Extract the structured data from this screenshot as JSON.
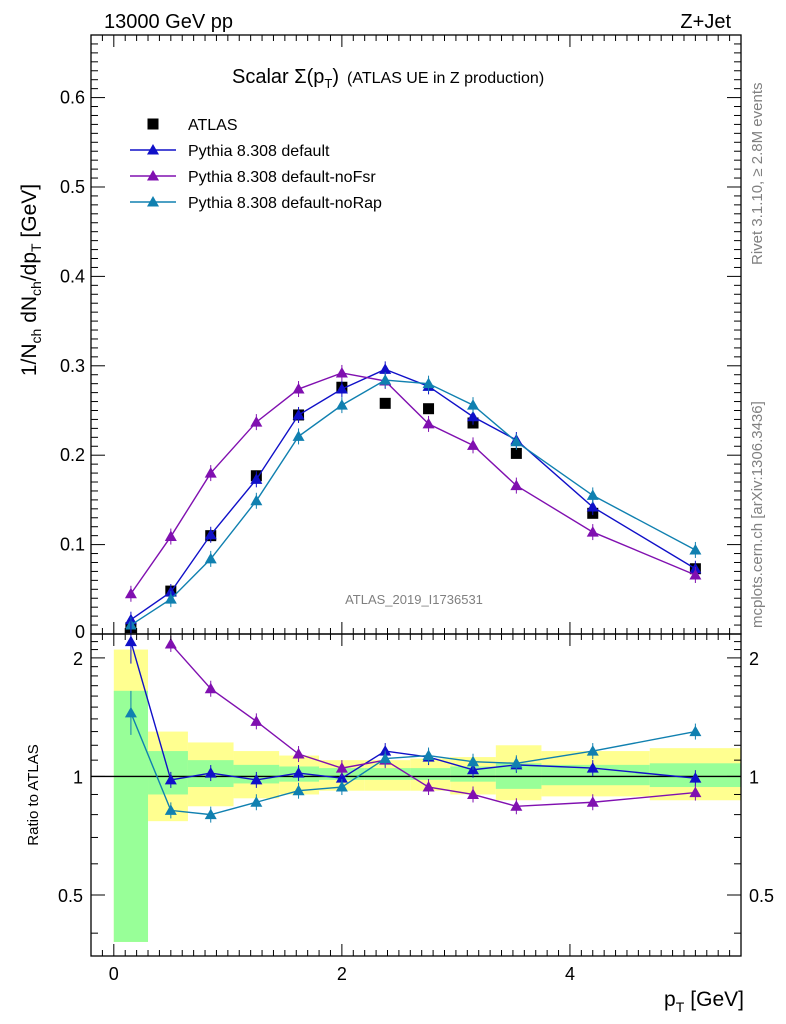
{
  "header": {
    "energy": "13000 GeV pp",
    "process": "Z+Jet"
  },
  "side_text": {
    "rivet": "Rivet 3.1.10, ≥ 2.8M events",
    "mcplots": "mcplots.cern.ch [arXiv:1306.3436]"
  },
  "colors": {
    "atlas": "#000000",
    "default": "#1010c8",
    "noFsr": "#8010b0",
    "noRap": "#1080b0",
    "band_stat": "#98ff98",
    "band_total": "#ffff90"
  },
  "chart_data": [
    {
      "type": "scatter",
      "title": "Scalar Σ(p_T) (ATLAS UE in Z production)",
      "title_main": "Scalar ",
      "title_sigma": "Σ(p",
      "title_sub": "T",
      "title_close": ")",
      "title_suffix": "(ATLAS UE in Z production)",
      "ylabel": "1/N_ch dN_ch/dp_T [GeV]",
      "analysis_label": "ATLAS_2019_I1736531",
      "xlim": [
        -0.2,
        5.5
      ],
      "ylim": [
        0,
        0.67
      ],
      "yticks": [
        0.1,
        0.2,
        0.3,
        0.4,
        0.5,
        0.6
      ],
      "ytick_labels": [
        "0.1",
        "0.2",
        "0.3",
        "0.4",
        "0.5",
        "0.6"
      ],
      "ytick_zero_label": "0",
      "legend_position": "top-left",
      "x": [
        0.15,
        0.5,
        0.85,
        1.25,
        1.62,
        2.0,
        2.38,
        2.76,
        3.15,
        3.53,
        4.2,
        5.1
      ],
      "series": [
        {
          "name": "ATLAS",
          "marker": "square",
          "values": [
            0.007,
            0.048,
            0.11,
            0.177,
            0.245,
            0.276,
            0.258,
            0.252,
            0.236,
            0.202,
            0.135,
            0.073
          ]
        },
        {
          "name": "Pythia 8.308 default",
          "marker": "triangle",
          "values": [
            0.016,
            0.047,
            0.111,
            0.173,
            0.245,
            0.274,
            0.296,
            0.277,
            0.243,
            0.217,
            0.142,
            0.073
          ]
        },
        {
          "name": "Pythia 8.308 default-noFsr",
          "marker": "triangle",
          "values": [
            0.045,
            0.109,
            0.18,
            0.237,
            0.274,
            0.292,
            0.283,
            0.235,
            0.211,
            0.166,
            0.114,
            0.066
          ]
        },
        {
          "name": "Pythia 8.308 default-noRap",
          "marker": "triangle",
          "values": [
            0.01,
            0.039,
            0.084,
            0.149,
            0.221,
            0.256,
            0.284,
            0.28,
            0.256,
            0.215,
            0.155,
            0.094
          ]
        }
      ]
    },
    {
      "type": "line",
      "ylabel": "Ratio to ATLAS",
      "xlabel": "p_T [GeV]",
      "xlabel_main": "p",
      "xlabel_sub": "T",
      "xlabel_unit": "[GeV]",
      "xlim": [
        -0.2,
        5.5
      ],
      "xticks": [
        0,
        2,
        4
      ],
      "xtick_labels": [
        "0",
        "2",
        "4"
      ],
      "ylim": [
        0.35,
        2.3
      ],
      "ylog": true,
      "yticks": [
        0.5,
        1,
        2
      ],
      "ytick_labels": [
        "0.5",
        "1",
        "2"
      ],
      "reference": 1,
      "x": [
        0.15,
        0.5,
        0.85,
        1.25,
        1.62,
        2.0,
        2.38,
        2.76,
        3.15,
        3.53,
        4.2,
        5.1
      ],
      "bands": {
        "edges": [
          0.0,
          0.3,
          0.65,
          1.05,
          1.45,
          1.8,
          2.2,
          2.6,
          2.95,
          3.35,
          3.75,
          4.7,
          5.5
        ],
        "total": [
          [
            0.38,
            2.1
          ],
          [
            0.77,
            1.3
          ],
          [
            0.84,
            1.22
          ],
          [
            0.88,
            1.16
          ],
          [
            0.9,
            1.13
          ],
          [
            0.92,
            1.1
          ],
          [
            0.92,
            1.1
          ],
          [
            0.92,
            1.11
          ],
          [
            0.9,
            1.12
          ],
          [
            0.87,
            1.2
          ],
          [
            0.89,
            1.16
          ],
          [
            0.87,
            1.18
          ]
        ],
        "stat": [
          [
            0.38,
            1.65
          ],
          [
            0.9,
            1.16
          ],
          [
            0.94,
            1.1
          ],
          [
            0.96,
            1.07
          ],
          [
            0.97,
            1.06
          ],
          [
            0.98,
            1.05
          ],
          [
            0.98,
            1.05
          ],
          [
            0.98,
            1.05
          ],
          [
            0.97,
            1.06
          ],
          [
            0.93,
            1.08
          ],
          [
            0.95,
            1.07
          ],
          [
            0.94,
            1.08
          ]
        ]
      },
      "series": [
        {
          "name": "Pythia 8.308 default",
          "values": [
            2.2,
            0.98,
            1.02,
            0.98,
            1.02,
            0.99,
            1.16,
            1.12,
            1.04,
            1.07,
            1.05,
            0.99
          ]
        },
        {
          "name": "Pythia 8.308 default-noFsr",
          "values": [
            null,
            2.17,
            1.67,
            1.38,
            1.14,
            1.05,
            1.1,
            0.94,
            0.9,
            0.84,
            0.86,
            0.91
          ]
        },
        {
          "name": "Pythia 8.308 default-noRap",
          "values": [
            1.45,
            0.82,
            0.8,
            0.86,
            0.92,
            0.94,
            1.11,
            1.13,
            1.09,
            1.08,
            1.16,
            1.3
          ]
        }
      ]
    }
  ]
}
